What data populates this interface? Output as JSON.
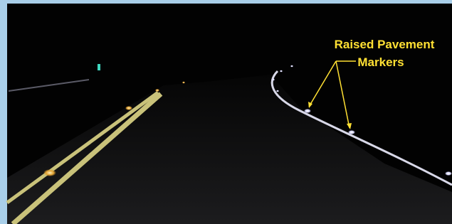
{
  "annotation": {
    "lines": [
      "Raised Pavement",
      "Markers"
    ]
  }
}
